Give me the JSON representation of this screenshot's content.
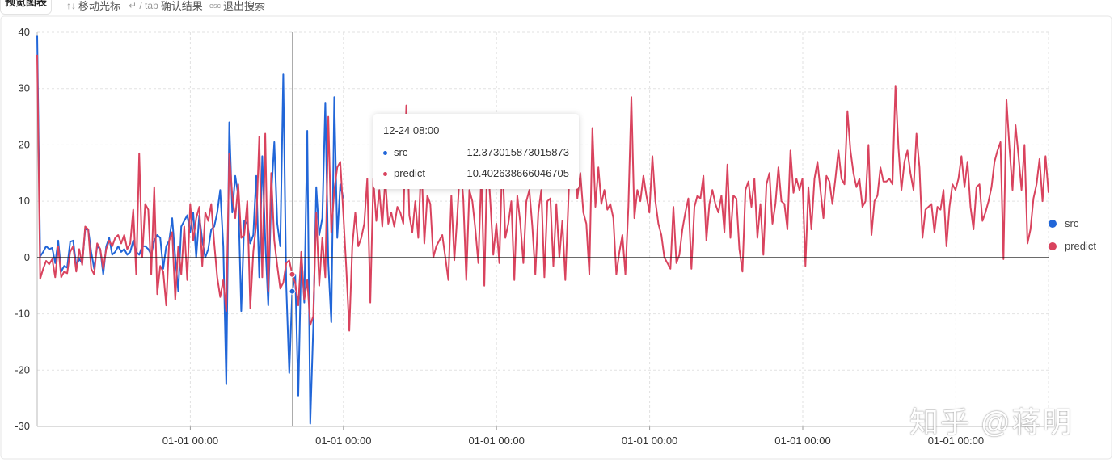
{
  "topbar": {
    "tab_label": "预览图表",
    "hints": [
      {
        "key": "↑↓",
        "label": "移动光标"
      },
      {
        "key": "↵ / tab",
        "label": "确认结果"
      },
      {
        "key": "esc",
        "label": "退出搜索"
      }
    ]
  },
  "tooltip": {
    "title": "12-24 08:00",
    "rows": [
      {
        "name": "src",
        "value": "-12.373015873015873"
      },
      {
        "name": "predict",
        "value": "-10.402638666046705"
      }
    ]
  },
  "legend": [
    {
      "name": "src",
      "color": "#2166d8"
    },
    {
      "name": "predict",
      "color": "#d9435e"
    }
  ],
  "watermark": "知乎 @蒋明",
  "chart_data": {
    "type": "line",
    "ylim": [
      -30,
      40
    ],
    "yticks": [
      40,
      30,
      20,
      10,
      0,
      -10,
      -20,
      -30
    ],
    "xticks": [
      "01-01 00:00",
      "01-01 00:00",
      "01-01 00:00",
      "01-01 00:00",
      "01-01 00:00",
      "01-01 00:00"
    ],
    "grid": true,
    "legend_position": "right",
    "hover_index": 85,
    "series": [
      {
        "name": "src",
        "color": "#2166d8",
        "values": [
          39.5,
          0.2,
          1.0,
          2.0,
          1.5,
          1.7,
          -1.0,
          3.0,
          -2.5,
          -1.5,
          -1.8,
          2.8,
          3.0,
          -1.5,
          -0.3,
          -1.0,
          5.0,
          5.0,
          1.0,
          -2.0,
          2.0,
          1.5,
          -3.0,
          2.0,
          3.5,
          0.5,
          1.0,
          2.0,
          1.0,
          1.5,
          0.5,
          1.0,
          3.0,
          1.0,
          0.5,
          2.0,
          2.0,
          1.5,
          0.5,
          3.0,
          4.0,
          3.5,
          -2.0,
          2.0,
          3.0,
          7.0,
          0.0,
          -6.0,
          5.5,
          6.5,
          7.5,
          4.5,
          8.0,
          0.0,
          7.5,
          3.0,
          0.0,
          1.5,
          5.0,
          5.5,
          8.0,
          12.0,
          2.0,
          -22.5,
          24.0,
          8.0,
          14.5,
          11.0,
          -9.5,
          6.5,
          6.0,
          2.5,
          4.0,
          14.5,
          -3.5,
          18.0,
          3.0,
          -8.5,
          11.0,
          20.5,
          6.0,
          2.0,
          32.5,
          -5.0,
          -20.5,
          -6.0,
          -3.0,
          -24.5,
          1.0,
          -8.0,
          22.5,
          -29.5,
          -12.4,
          12.5,
          4.0,
          7.0,
          27.5,
          -1.0,
          -11.5,
          28.5,
          3.5,
          13.0,
          10.5
        ]
      },
      {
        "name": "predict",
        "color": "#d9435e",
        "values": [
          36.0,
          -3.8,
          -2.0,
          -0.6,
          -1.2,
          -0.3,
          -3.5,
          2.0,
          -3.5,
          -2.5,
          -2.8,
          1.0,
          2.0,
          -2.5,
          1.5,
          -1.3,
          5.5,
          5.0,
          -2.0,
          -3.0,
          2.5,
          1.5,
          -2.0,
          1.5,
          3.0,
          2.0,
          3.5,
          4.0,
          2.5,
          4.0,
          1.5,
          2.5,
          8.5,
          -3.0,
          18.5,
          0.0,
          9.5,
          8.5,
          -3.0,
          12.5,
          -6.5,
          -1.5,
          -2.5,
          -8.5,
          3.0,
          4.5,
          -7.5,
          2.0,
          -3.0,
          5.5,
          -4.0,
          9.5,
          3.0,
          7.0,
          9.0,
          -1.5,
          8.0,
          6.5,
          9.5,
          2.5,
          -3.5,
          -7.0,
          -4.0,
          -9.5,
          18.5,
          11.0,
          7.0,
          13.0,
          3.5,
          4.0,
          10.0,
          -9.0,
          1.0,
          6.0,
          21.5,
          -3.5,
          22.0,
          -6.0,
          15.0,
          3.0,
          -1.5,
          -5.5,
          -4.5,
          -1.0,
          -0.5,
          -3.0,
          -4.5,
          -8.5,
          1.0,
          -7.5,
          -4.0,
          -12.0,
          -10.4,
          8.0,
          -5.0,
          3.5,
          -3.5,
          25.0,
          4.5,
          12.0,
          16.0,
          17.0,
          8.0,
          -2.0,
          -13.0,
          2.0,
          8.0,
          2.0,
          3.5,
          6.0,
          14.0,
          -8.0,
          14.0,
          6.5,
          12.0,
          5.5,
          14.0,
          6.0,
          8.0,
          5.5,
          9.0,
          8.0,
          6.0,
          27.0,
          7.5,
          4.5,
          10.0,
          3.5,
          17.5,
          2.5,
          11.0,
          9.5,
          0.0,
          2.0,
          3.0,
          4.0,
          0.0,
          -4.0,
          11.0,
          -0.5,
          7.5,
          17.0,
          10.5,
          -4.0,
          12.0,
          10.0,
          5.0,
          -1.0,
          15.0,
          -5.0,
          18.5,
          10.0,
          0.5,
          6.0,
          -1.0,
          18.0,
          3.5,
          6.0,
          10.0,
          -4.0,
          11.0,
          6.0,
          -1.0,
          10.0,
          12.0,
          5.5,
          -3.0,
          8.0,
          12.0,
          -3.5,
          10.0,
          10.5,
          -1.5,
          9.5,
          0.0,
          6.5,
          -4.0,
          10.0,
          24.0,
          20.0,
          10.5,
          15.0,
          8.0,
          6.0,
          -3.0,
          23.0,
          9.0,
          16.0,
          9.5,
          12.0,
          8.5,
          9.5,
          7.0,
          -3.0,
          1.0,
          4.0,
          -3.0,
          9.0,
          28.5,
          7.0,
          12.0,
          10.0,
          14.5,
          11.0,
          8.0,
          18.0,
          10.0,
          6.0,
          4.0,
          0.0,
          -1.0,
          -2.0,
          9.0,
          -1.0,
          0.5,
          5.0,
          8.0,
          10.5,
          -2.0,
          9.0,
          11.0,
          10.5,
          14.5,
          3.0,
          9.5,
          12.0,
          9.5,
          8.0,
          11.0,
          4.5,
          16.5,
          3.5,
          11.0,
          10.5,
          1.5,
          -2.5,
          12.0,
          13.5,
          9.0,
          14.0,
          3.5,
          9.5,
          0.5,
          13.0,
          15.0,
          6.0,
          9.5,
          16.0,
          10.0,
          9.5,
          5.0,
          19.0,
          11.5,
          14.0,
          12.0,
          14.0,
          -1.5,
          12.5,
          5.0,
          14.0,
          17.0,
          12.0,
          7.0,
          14.5,
          13.5,
          9.5,
          14.0,
          19.0,
          14.0,
          13.0,
          26.0,
          19.0,
          15.0,
          12.5,
          14.0,
          9.0,
          10.0,
          20.0,
          4.0,
          10.0,
          11.0,
          16.0,
          13.5,
          13.5,
          14.0,
          13.0,
          30.5,
          19.5,
          12.0,
          17.0,
          19.0,
          15.0,
          12.0,
          22.0,
          16.0,
          3.5,
          8.5,
          9.0,
          9.5,
          4.5,
          9.0,
          8.5,
          12.0,
          2.0,
          9.0,
          13.0,
          12.0,
          14.0,
          18.0,
          12.5,
          17.0,
          9.0,
          5.0,
          12.5,
          13.0,
          6.5,
          8.0,
          10.0,
          12.5,
          17.0,
          19.0,
          20.5,
          -0.3,
          28.0,
          19.5,
          12.0,
          23.5,
          18.0,
          12.0,
          20.0,
          2.5,
          5.0,
          10.5,
          13.0,
          17.5,
          10.0,
          18.0,
          11.5
        ]
      }
    ]
  }
}
